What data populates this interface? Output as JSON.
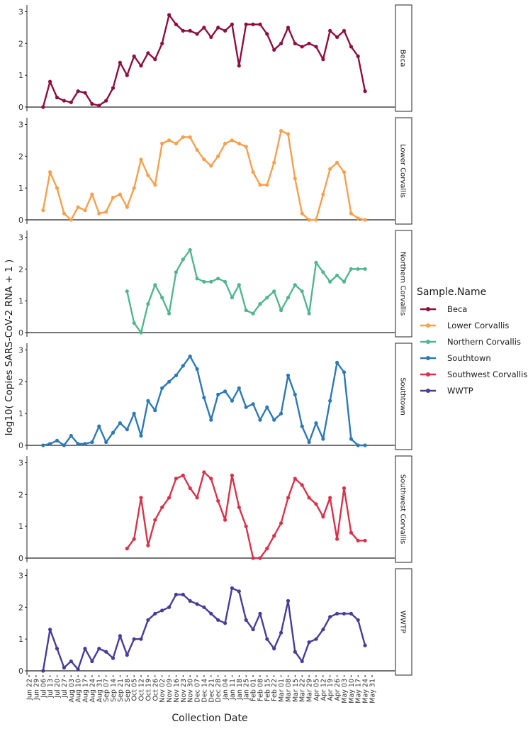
{
  "chart_data": {
    "type": "line",
    "facet_by": "Sample.Name",
    "xlabel": "Collection Date",
    "ylabel": "log10( Copies SARS-CoV-2 RNA + 1 )",
    "ylim": [
      0,
      3.1
    ],
    "y_ticks": [
      "0",
      "1",
      "2",
      "3"
    ],
    "x_ticks": [
      "Jun 22",
      "Jun 29",
      "Jul 06",
      "Jul 13",
      "Jul 20",
      "Jul 27",
      "Aug 03",
      "Aug 10",
      "Aug 17",
      "Aug 24",
      "Aug 31",
      "Sep 07",
      "Sep 14",
      "Sep 21",
      "Sep 28",
      "Oct 05",
      "Oct 12",
      "Oct 19",
      "Oct 26",
      "Nov 02",
      "Nov 09",
      "Nov 16",
      "Nov 23",
      "Nov 30",
      "Dec 07",
      "Dec 14",
      "Dec 21",
      "Dec 28",
      "Jan 04",
      "Jan 11",
      "Jan 18",
      "Jan 25",
      "Feb 01",
      "Feb 08",
      "Feb 15",
      "Feb 22",
      "Mar 01",
      "Mar 08",
      "Mar 15",
      "Mar 22",
      "Mar 29",
      "Apr 05",
      "Apr 12",
      "Apr 19",
      "Apr 26",
      "May 03",
      "May 10",
      "May 17",
      "May 24",
      "May 31"
    ],
    "legend": {
      "title": "Sample.Name",
      "position": "right"
    },
    "grid": false,
    "series": [
      {
        "name": "Beca",
        "color": "#8B0F3F",
        "x": [
          2,
          3,
          4,
          5,
          6,
          7,
          8,
          9,
          10,
          11,
          12,
          13,
          14,
          15,
          16,
          17,
          18,
          19,
          20,
          21,
          22,
          23,
          24,
          25,
          26,
          27,
          28,
          29,
          30,
          31,
          32,
          33,
          34,
          35,
          36,
          37,
          38,
          39,
          40,
          41,
          42,
          43,
          44,
          45,
          46,
          47,
          48
        ],
        "y": [
          0,
          0.8,
          0.3,
          0.2,
          0.15,
          0.5,
          0.45,
          0.1,
          0.05,
          0.2,
          0.6,
          1.4,
          1.0,
          1.6,
          1.3,
          1.7,
          1.5,
          2.0,
          2.9,
          2.6,
          2.4,
          2.4,
          2.3,
          2.5,
          2.2,
          2.5,
          2.4,
          2.6,
          1.3,
          2.6,
          2.6,
          2.6,
          2.3,
          1.8,
          2.0,
          2.5,
          2.0,
          1.9,
          2.0,
          1.9,
          1.5,
          2.4,
          2.2,
          2.4,
          1.9,
          1.6,
          0.5
        ]
      },
      {
        "name": "Lower Corvallis",
        "color": "#F5A04E",
        "x": [
          2,
          3,
          4,
          5,
          6,
          7,
          8,
          9,
          10,
          11,
          12,
          13,
          14,
          15,
          16,
          17,
          18,
          19,
          20,
          21,
          22,
          23,
          24,
          25,
          26,
          27,
          28,
          29,
          30,
          31,
          32,
          33,
          34,
          35,
          36,
          37,
          38,
          39,
          40,
          41,
          42,
          43,
          44,
          45,
          46,
          47,
          48
        ],
        "y": [
          0.3,
          1.5,
          1.0,
          0.2,
          0.0,
          0.4,
          0.3,
          0.8,
          0.2,
          0.25,
          0.7,
          0.8,
          0.4,
          1.0,
          1.9,
          1.4,
          1.1,
          2.4,
          2.5,
          2.4,
          2.6,
          2.6,
          2.2,
          1.9,
          1.7,
          2.0,
          2.4,
          2.5,
          2.4,
          2.3,
          1.5,
          1.1,
          1.1,
          1.8,
          2.8,
          2.7,
          1.3,
          0.2,
          0.0,
          0.0,
          0.8,
          1.6,
          1.8,
          1.5,
          0.2,
          0.05,
          0.0
        ]
      },
      {
        "name": "Northern Corvallis",
        "color": "#52B58F",
        "x": [
          14,
          15,
          16,
          17,
          18,
          19,
          20,
          21,
          22,
          23,
          24,
          25,
          26,
          27,
          28,
          29,
          30,
          31,
          32,
          33,
          34,
          35,
          36,
          37,
          38,
          39,
          40,
          41,
          42,
          43,
          44,
          45,
          46,
          47,
          48
        ],
        "y": [
          1.3,
          0.3,
          0.0,
          0.9,
          1.5,
          1.1,
          0.6,
          1.9,
          2.3,
          2.6,
          1.7,
          1.6,
          1.6,
          1.7,
          1.6,
          1.1,
          1.5,
          0.7,
          0.6,
          0.9,
          1.1,
          1.3,
          0.7,
          1.1,
          1.5,
          1.3,
          0.6,
          2.2,
          1.9,
          1.6,
          1.8,
          1.6,
          2.0,
          2.0,
          2.0
        ]
      },
      {
        "name": "Southtown",
        "color": "#2E78B4",
        "x": [
          2,
          3,
          4,
          5,
          6,
          7,
          8,
          9,
          10,
          11,
          12,
          13,
          14,
          15,
          16,
          17,
          18,
          19,
          20,
          21,
          22,
          23,
          24,
          25,
          26,
          27,
          28,
          29,
          30,
          31,
          32,
          33,
          34,
          35,
          36,
          37,
          38,
          39,
          40,
          41,
          42,
          43,
          44,
          45,
          46,
          47,
          48
        ],
        "y": [
          0,
          0.05,
          0.15,
          0.0,
          0.3,
          0.05,
          0.05,
          0.1,
          0.6,
          0.1,
          0.4,
          0.7,
          0.5,
          1.0,
          0.3,
          1.4,
          1.1,
          1.8,
          2.0,
          2.2,
          2.5,
          2.8,
          2.4,
          1.5,
          0.8,
          1.6,
          1.7,
          1.4,
          1.8,
          1.2,
          1.3,
          0.8,
          1.2,
          0.8,
          1.0,
          2.2,
          1.6,
          0.6,
          0.1,
          0.7,
          0.2,
          1.4,
          2.6,
          2.3,
          0.2,
          0.0,
          0.0
        ]
      },
      {
        "name": "Southwest Corvallis",
        "color": "#D6334A",
        "x": [
          14,
          15,
          16,
          17,
          18,
          19,
          20,
          21,
          22,
          23,
          24,
          25,
          26,
          27,
          28,
          29,
          30,
          31,
          32,
          33,
          34,
          35,
          36,
          37,
          38,
          39,
          40,
          41,
          42,
          43,
          44,
          45,
          46,
          47,
          48
        ],
        "y": [
          0.3,
          0.6,
          1.9,
          0.4,
          1.2,
          1.6,
          1.9,
          2.5,
          2.6,
          2.2,
          1.9,
          2.7,
          2.5,
          1.8,
          1.2,
          2.6,
          1.6,
          1.0,
          0.0,
          0.0,
          0.3,
          0.7,
          1.1,
          1.9,
          2.5,
          2.3,
          1.9,
          1.7,
          1.3,
          1.9,
          0.6,
          2.2,
          0.8,
          0.55,
          0.55
        ]
      },
      {
        "name": "WWTP",
        "color": "#4B3A98",
        "x": [
          2,
          3,
          4,
          5,
          6,
          7,
          8,
          9,
          10,
          11,
          12,
          13,
          14,
          15,
          16,
          17,
          18,
          19,
          20,
          21,
          22,
          23,
          24,
          25,
          26,
          27,
          28,
          29,
          30,
          31,
          32,
          33,
          34,
          35,
          36,
          37,
          38,
          39,
          40,
          41,
          42,
          43,
          44,
          45,
          46,
          47,
          48
        ],
        "y": [
          0,
          1.3,
          0.7,
          0.1,
          0.3,
          0.05,
          0.7,
          0.3,
          0.7,
          0.6,
          0.4,
          1.1,
          0.5,
          1.0,
          1.0,
          1.6,
          1.8,
          1.9,
          2.0,
          2.4,
          2.4,
          2.2,
          2.1,
          2.0,
          1.8,
          1.6,
          1.5,
          2.6,
          2.5,
          1.6,
          1.3,
          1.8,
          1.0,
          0.7,
          1.2,
          2.2,
          0.6,
          0.3,
          0.9,
          1.0,
          1.3,
          1.7,
          1.8,
          1.8,
          1.8,
          1.6,
          0.8
        ]
      }
    ]
  }
}
